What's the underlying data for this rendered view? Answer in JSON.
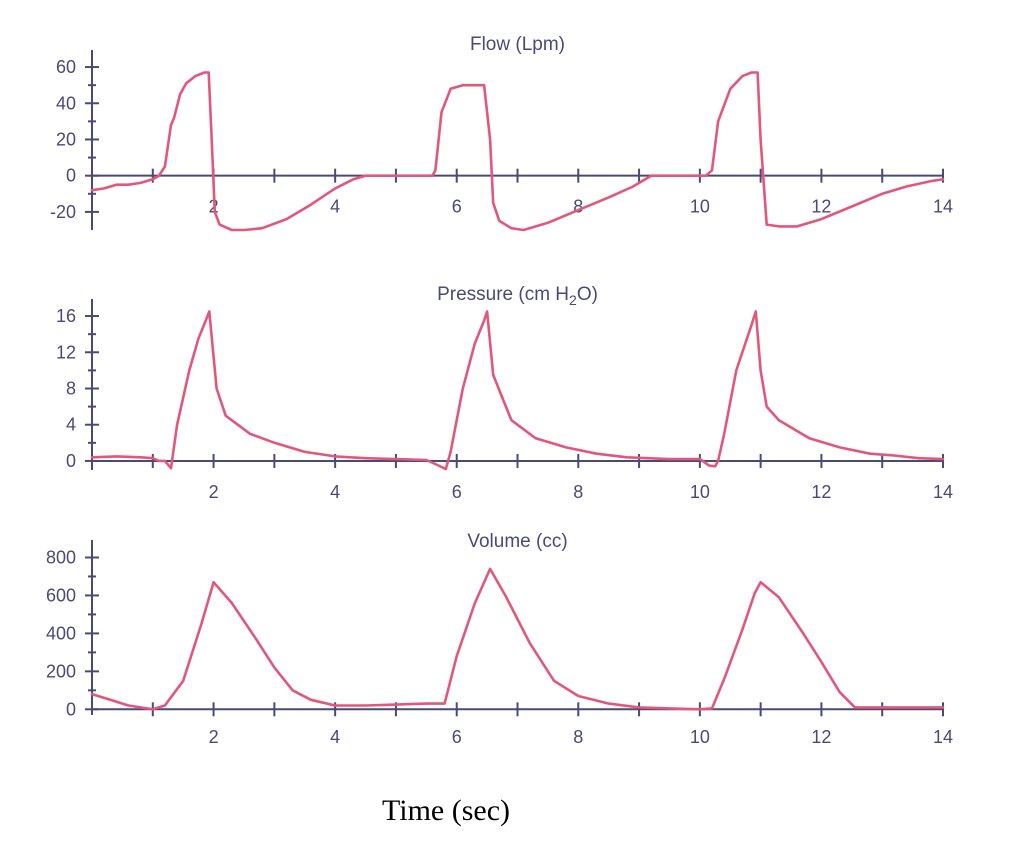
{
  "figure": {
    "xlabel": "Time (sec)"
  },
  "colors": {
    "axis": "#4a4a7a",
    "trace": "#e2577a"
  },
  "chart_data": [
    {
      "type": "line",
      "title": "Flow (Lpm)",
      "title_parts": {
        "main": "Flow (Lpm)",
        "sub": "",
        "tail": ""
      },
      "xlim": [
        0,
        14
      ],
      "ylim": [
        -30,
        65
      ],
      "yticks": [
        -20,
        0,
        20,
        40,
        60
      ],
      "ytick_labels": [
        "-20",
        "0",
        "20",
        "40",
        "60"
      ],
      "xtick_labels": [
        {
          "x": 2,
          "label": "2"
        },
        {
          "x": 4,
          "label": "4"
        },
        {
          "x": 6,
          "label": "6"
        },
        {
          "x": 8,
          "label": "8"
        },
        {
          "x": 10,
          "label": "10"
        },
        {
          "x": 12,
          "label": "12"
        },
        {
          "x": 14,
          "label": "14"
        }
      ],
      "series": [
        {
          "x": [
            0,
            0.2,
            0.4,
            0.6,
            0.8,
            1.0,
            1.1,
            1.2,
            1.3,
            1.35,
            1.45,
            1.55,
            1.7,
            1.85,
            1.92,
            1.97,
            2.02,
            2.1,
            2.3,
            2.5,
            2.8,
            3.2,
            3.6,
            4.0,
            4.3,
            4.5,
            5.0,
            5.6,
            5.65,
            5.75,
            5.9,
            6.1,
            6.3,
            6.45,
            6.55,
            6.6,
            6.7,
            6.9,
            7.1,
            7.5,
            8.0,
            8.5,
            8.9,
            9.2,
            10.0,
            10.1,
            10.2,
            10.3,
            10.5,
            10.7,
            10.85,
            10.95,
            11.0,
            11.1,
            11.3,
            11.6,
            12.0,
            12.5,
            13.0,
            13.4,
            13.8,
            14.0
          ],
          "y": [
            -8,
            -7,
            -5,
            -5,
            -4,
            -2,
            0,
            5,
            28,
            32,
            45,
            51,
            55,
            57,
            57,
            20,
            -20,
            -27,
            -30,
            -30,
            -29,
            -24,
            -16,
            -7,
            -2,
            0,
            0,
            0,
            3,
            35,
            48,
            50,
            50,
            50,
            20,
            -15,
            -25,
            -29,
            -30,
            -26,
            -19,
            -12,
            -6,
            0,
            0,
            0,
            3,
            30,
            48,
            55,
            57,
            57,
            20,
            -27,
            -28,
            -28,
            -24,
            -17,
            -10,
            -6,
            -3,
            -2
          ]
        }
      ]
    },
    {
      "type": "line",
      "title": "Pressure (cm H2O)",
      "title_parts": {
        "main": "Pressure (cm H",
        "sub": "2",
        "tail": "O)"
      },
      "xlim": [
        0,
        14
      ],
      "ylim": [
        -1,
        17
      ],
      "yticks": [
        0,
        4,
        8,
        12,
        16
      ],
      "ytick_labels": [
        "0",
        "4",
        "8",
        "12",
        "16"
      ],
      "xtick_labels": [
        {
          "x": 2,
          "label": "2"
        },
        {
          "x": 4,
          "label": "4"
        },
        {
          "x": 6,
          "label": "6"
        },
        {
          "x": 8,
          "label": "8"
        },
        {
          "x": 10,
          "label": "10"
        },
        {
          "x": 12,
          "label": "12"
        },
        {
          "x": 14,
          "label": "14"
        }
      ],
      "series": [
        {
          "x": [
            0,
            0.4,
            0.8,
            1.0,
            1.1,
            1.2,
            1.3,
            1.4,
            1.6,
            1.75,
            1.87,
            1.93,
            2.05,
            2.2,
            2.6,
            3.0,
            3.5,
            4.0,
            4.5,
            5.0,
            5.5,
            5.7,
            5.82,
            5.9,
            6.1,
            6.3,
            6.45,
            6.5,
            6.6,
            6.75,
            6.9,
            7.3,
            7.8,
            8.3,
            8.8,
            9.5,
            10.0,
            10.15,
            10.25,
            10.3,
            10.4,
            10.6,
            10.75,
            10.85,
            10.92,
            11.0,
            11.1,
            11.3,
            11.8,
            12.3,
            12.8,
            13.2,
            13.6,
            14.0
          ],
          "y": [
            0.4,
            0.5,
            0.4,
            0.3,
            0,
            0,
            -0.8,
            4,
            10,
            13.5,
            15.5,
            16.5,
            8,
            5,
            3,
            2,
            1,
            0.5,
            0.3,
            0.2,
            0.1,
            -0.5,
            -0.9,
            1,
            8,
            13,
            15.5,
            16.5,
            9.5,
            7,
            4.5,
            2.5,
            1.5,
            0.8,
            0.4,
            0.2,
            0.2,
            -0.5,
            -0.6,
            0,
            3,
            10,
            13,
            15,
            16.5,
            10,
            6,
            4.5,
            2.5,
            1.5,
            0.8,
            0.6,
            0.3,
            0.2
          ]
        }
      ]
    },
    {
      "type": "line",
      "title": "Volume (cc)",
      "title_parts": {
        "main": "Volume (cc)",
        "sub": "",
        "tail": ""
      },
      "xlim": [
        0,
        14
      ],
      "ylim": [
        -30,
        850
      ],
      "yticks": [
        0,
        200,
        400,
        600,
        800
      ],
      "ytick_labels": [
        "0",
        "200",
        "400",
        "600",
        "800"
      ],
      "xtick_labels": [
        {
          "x": 2,
          "label": "2"
        },
        {
          "x": 4,
          "label": "4"
        },
        {
          "x": 6,
          "label": "6"
        },
        {
          "x": 8,
          "label": "8"
        },
        {
          "x": 10,
          "label": "10"
        },
        {
          "x": 12,
          "label": "12"
        },
        {
          "x": 14,
          "label": "14"
        }
      ],
      "series": [
        {
          "x": [
            0,
            0.3,
            0.6,
            1.0,
            1.2,
            1.5,
            1.8,
            2.0,
            2.3,
            2.7,
            3.0,
            3.3,
            3.6,
            4.0,
            4.5,
            5.0,
            5.5,
            5.8,
            6.0,
            6.3,
            6.55,
            6.8,
            7.2,
            7.6,
            8.0,
            8.5,
            9.0,
            9.5,
            10.0,
            10.2,
            10.4,
            10.7,
            10.9,
            11.0,
            11.3,
            11.7,
            12.0,
            12.3,
            12.55,
            13.0,
            13.5,
            14.0
          ],
          "y": [
            80,
            50,
            20,
            0,
            20,
            150,
            450,
            670,
            560,
            370,
            220,
            100,
            50,
            20,
            20,
            25,
            30,
            30,
            280,
            560,
            740,
            600,
            350,
            150,
            70,
            30,
            10,
            5,
            0,
            5,
            160,
            420,
            610,
            670,
            590,
            400,
            250,
            90,
            10,
            10,
            10,
            10
          ]
        }
      ]
    }
  ]
}
